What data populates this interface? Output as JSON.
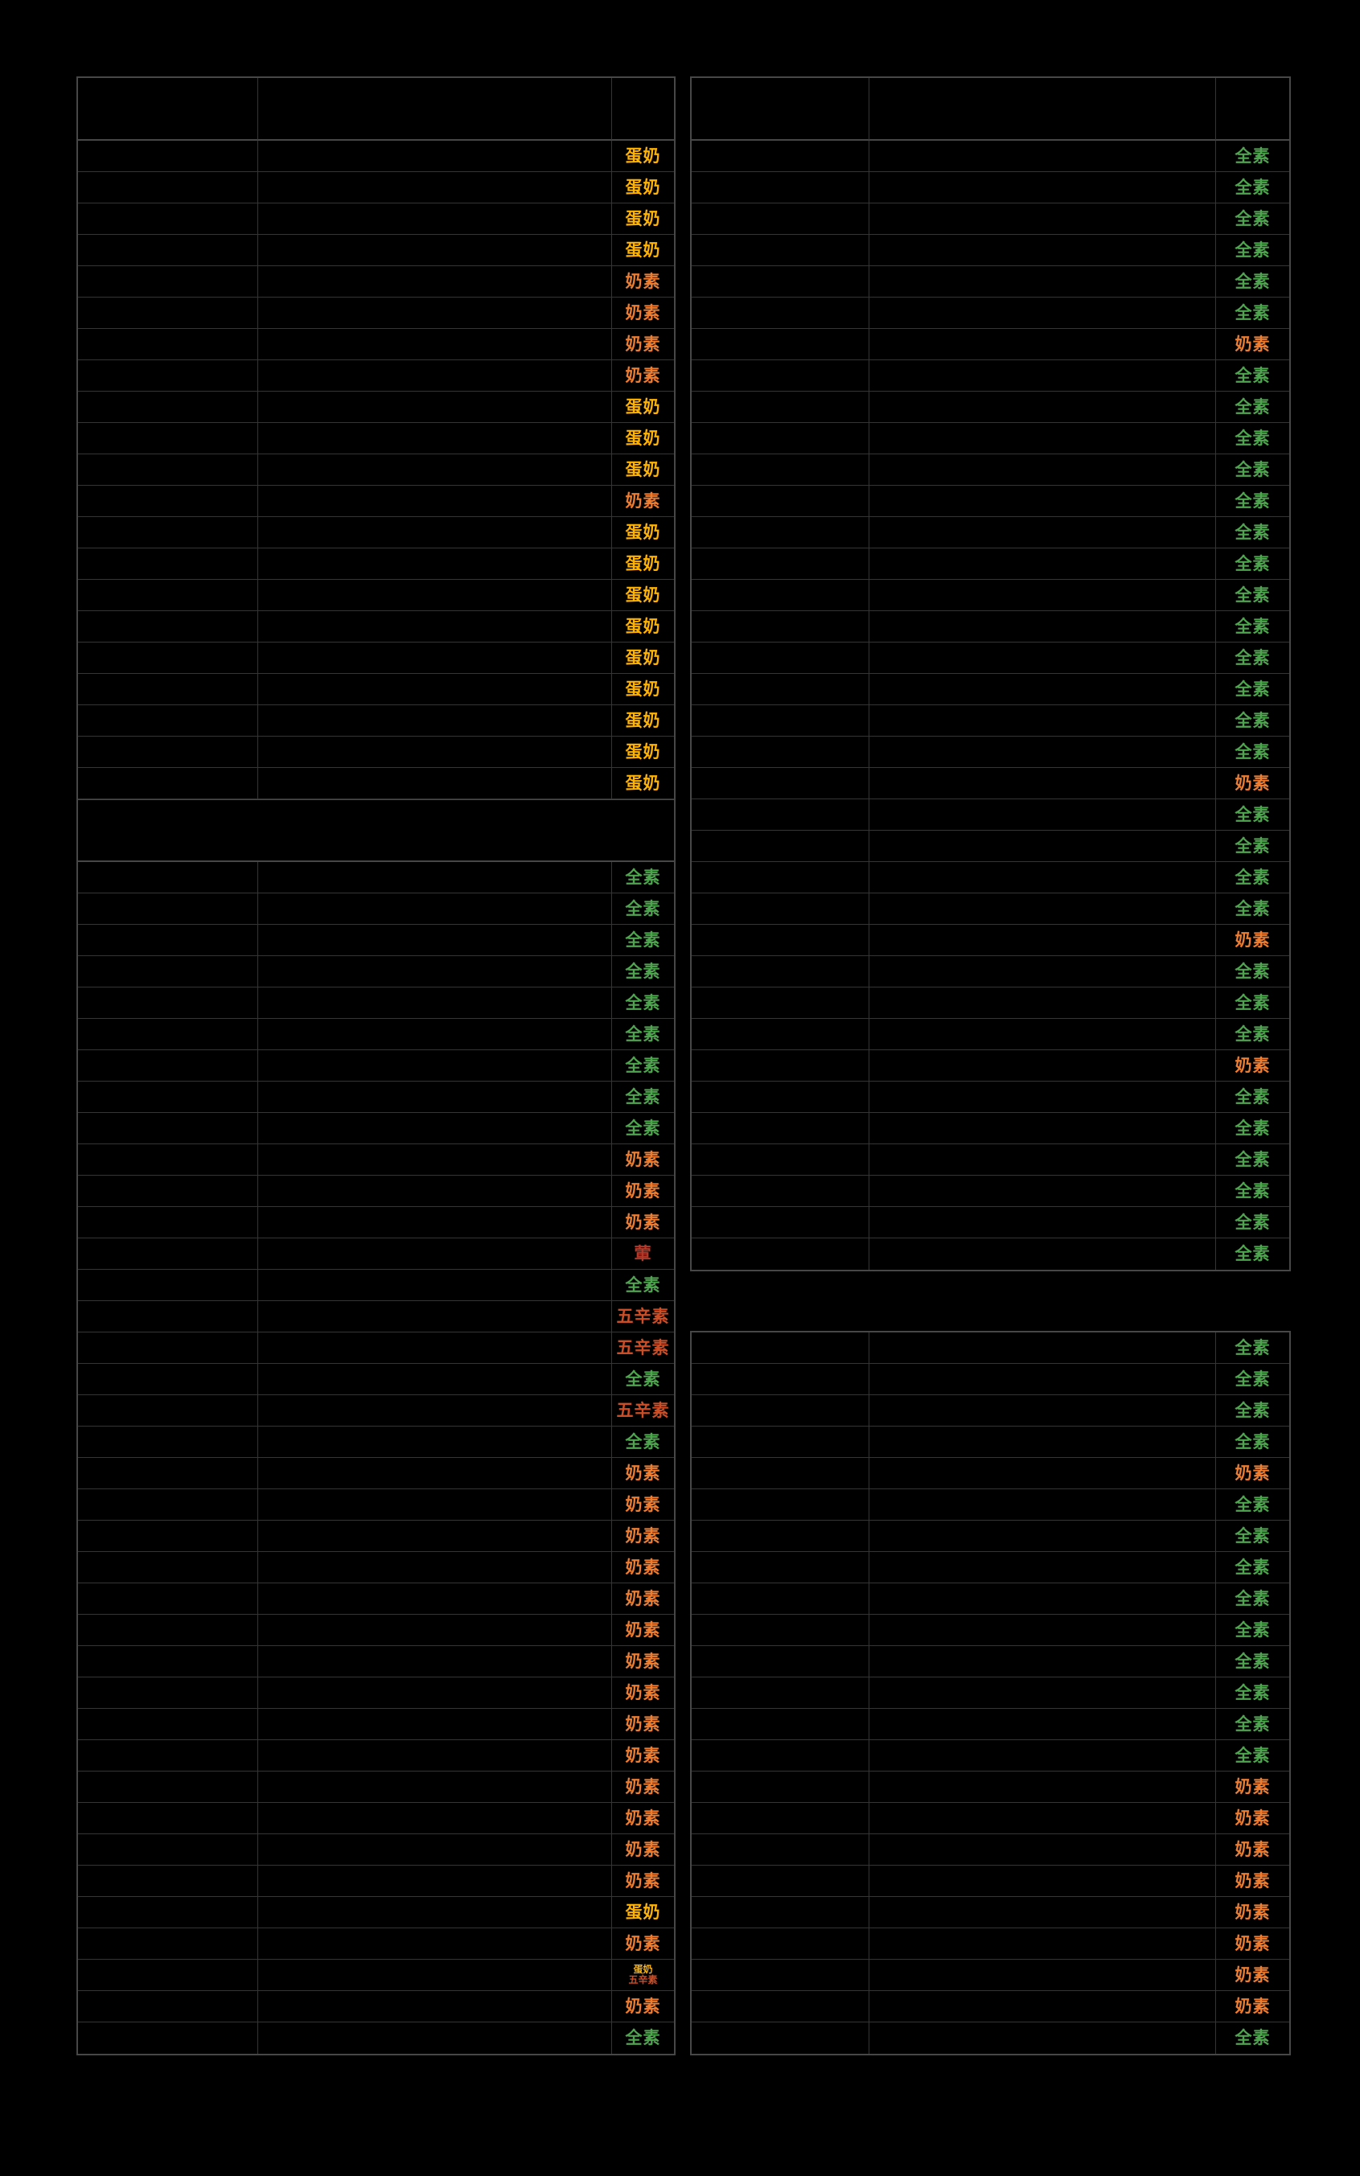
{
  "page": {
    "background_color": "#000000",
    "grid_line_color": "#353535",
    "table_border_color": "#474747"
  },
  "diet_labels": {
    "egg_dairy": "蛋奶",
    "lacto": "奶素",
    "vegan": "全素",
    "five_pungent": "五辛素",
    "meat": "葷"
  },
  "diet_colors": {
    "egg_dairy": "#FFB300",
    "lacto": "#ED7D31",
    "vegan": "#4FA44F",
    "five_pungent": "#CC4E27",
    "meat": "#B23A2A"
  },
  "left_table": {
    "rows_top": [
      "egg_dairy",
      "egg_dairy",
      "egg_dairy",
      "egg_dairy",
      "lacto",
      "lacto",
      "lacto",
      "lacto",
      "egg_dairy",
      "egg_dairy",
      "egg_dairy",
      "lacto",
      "egg_dairy",
      "egg_dairy",
      "egg_dairy",
      "egg_dairy",
      "egg_dairy",
      "egg_dairy",
      "egg_dairy",
      "egg_dairy",
      "egg_dairy"
    ],
    "rows_bottom": [
      "vegan",
      "vegan",
      "vegan",
      "vegan",
      "vegan",
      "vegan",
      "vegan",
      "vegan",
      "vegan",
      "lacto",
      "lacto",
      "lacto",
      "meat",
      "vegan",
      "five_pungent",
      "five_pungent",
      "vegan",
      "five_pungent",
      "vegan",
      "lacto",
      "lacto",
      "lacto",
      "lacto",
      "lacto",
      "lacto",
      "lacto",
      "lacto",
      "lacto",
      "lacto",
      "lacto",
      "lacto",
      "lacto",
      "lacto",
      "egg_dairy",
      "lacto",
      "egg_dairy|five_pungent",
      "lacto",
      "vegan"
    ]
  },
  "right_table": {
    "rows_top": [
      "vegan",
      "vegan",
      "vegan",
      "vegan",
      "vegan",
      "vegan",
      "lacto",
      "vegan",
      "vegan",
      "vegan",
      "vegan",
      "vegan",
      "vegan",
      "vegan",
      "vegan",
      "vegan",
      "vegan",
      "vegan",
      "vegan",
      "vegan",
      "lacto",
      "vegan",
      "vegan",
      "vegan",
      "vegan",
      "lacto",
      "vegan",
      "vegan",
      "vegan",
      "lacto",
      "vegan",
      "vegan",
      "vegan",
      "vegan",
      "vegan",
      "vegan"
    ],
    "rows_bottom": [
      "vegan",
      "vegan",
      "vegan",
      "vegan",
      "lacto",
      "vegan",
      "vegan",
      "vegan",
      "vegan",
      "vegan",
      "vegan",
      "vegan",
      "vegan",
      "vegan",
      "lacto",
      "lacto",
      "lacto",
      "lacto",
      "lacto",
      "lacto",
      "lacto",
      "lacto",
      "vegan"
    ]
  }
}
